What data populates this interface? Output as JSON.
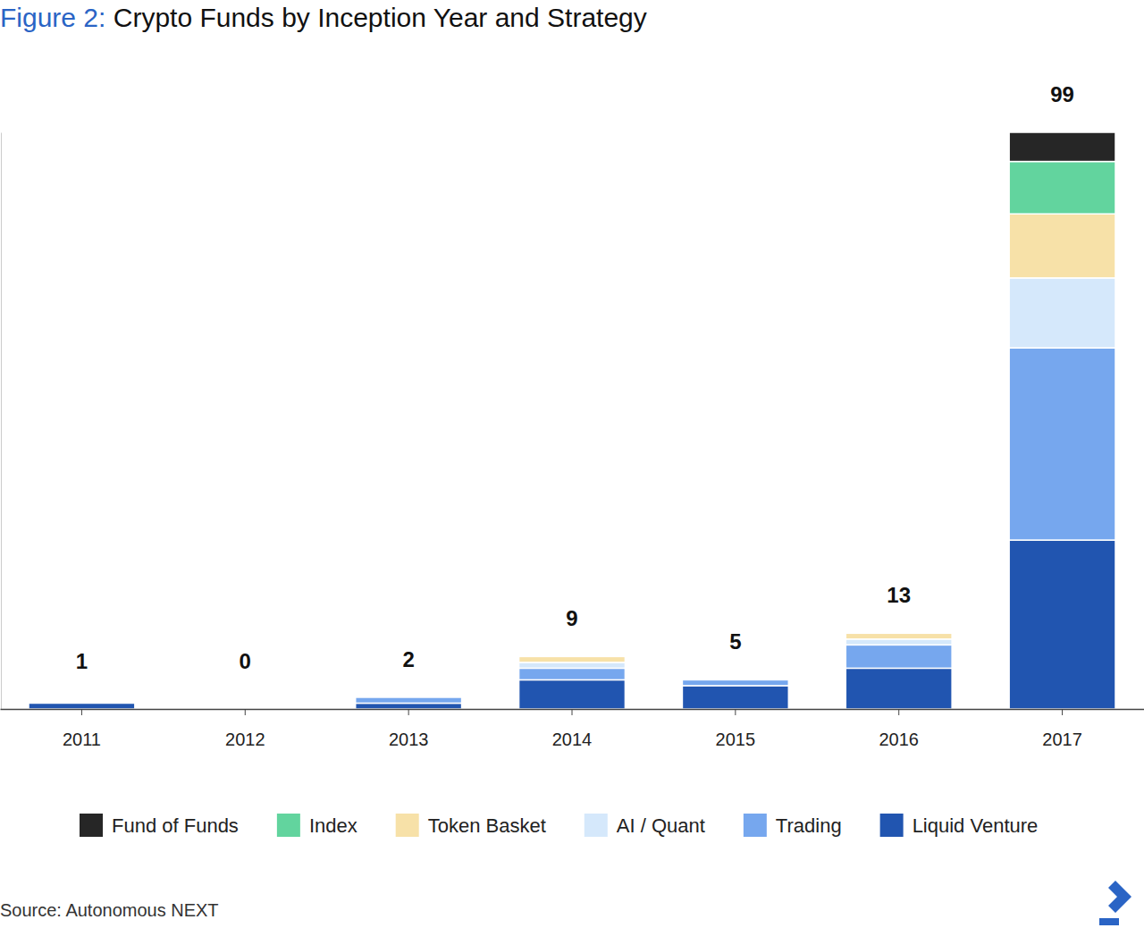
{
  "chart_data": {
    "type": "bar",
    "stacked": true,
    "title": "Figure 2: Crypto Funds by Inception Year and Strategy",
    "annotations": [
      "Source: Autonomous NEXT"
    ],
    "categories": [
      "2011",
      "2012",
      "2013",
      "2014",
      "2015",
      "2016",
      "2017"
    ],
    "series": [
      {
        "name": "Liquid Venture",
        "color": "#2155b0",
        "values": [
          1,
          0,
          1,
          5,
          4,
          7,
          29
        ]
      },
      {
        "name": "Trading",
        "color": "#76a7ee",
        "values": [
          0,
          0,
          1,
          2,
          1,
          4,
          33
        ]
      },
      {
        "name": "AI / Quant",
        "color": "#d5e8fb",
        "values": [
          0,
          0,
          0,
          1,
          0,
          1,
          12
        ]
      },
      {
        "name": "Token Basket",
        "color": "#f7e1a8",
        "values": [
          0,
          0,
          0,
          1,
          0,
          1,
          11
        ]
      },
      {
        "name": "Index",
        "color": "#62d49e",
        "values": [
          0,
          0,
          0,
          0,
          0,
          0,
          9
        ]
      },
      {
        "name": "Fund of Funds",
        "color": "#262626",
        "values": [
          0,
          0,
          0,
          0,
          0,
          0,
          5
        ]
      }
    ],
    "totals": [
      1,
      0,
      2,
      9,
      5,
      13,
      99
    ],
    "ylim": [
      0,
      99
    ],
    "yticks": [],
    "tick_labels": "x",
    "grid": false,
    "legend": "bottom"
  }
}
